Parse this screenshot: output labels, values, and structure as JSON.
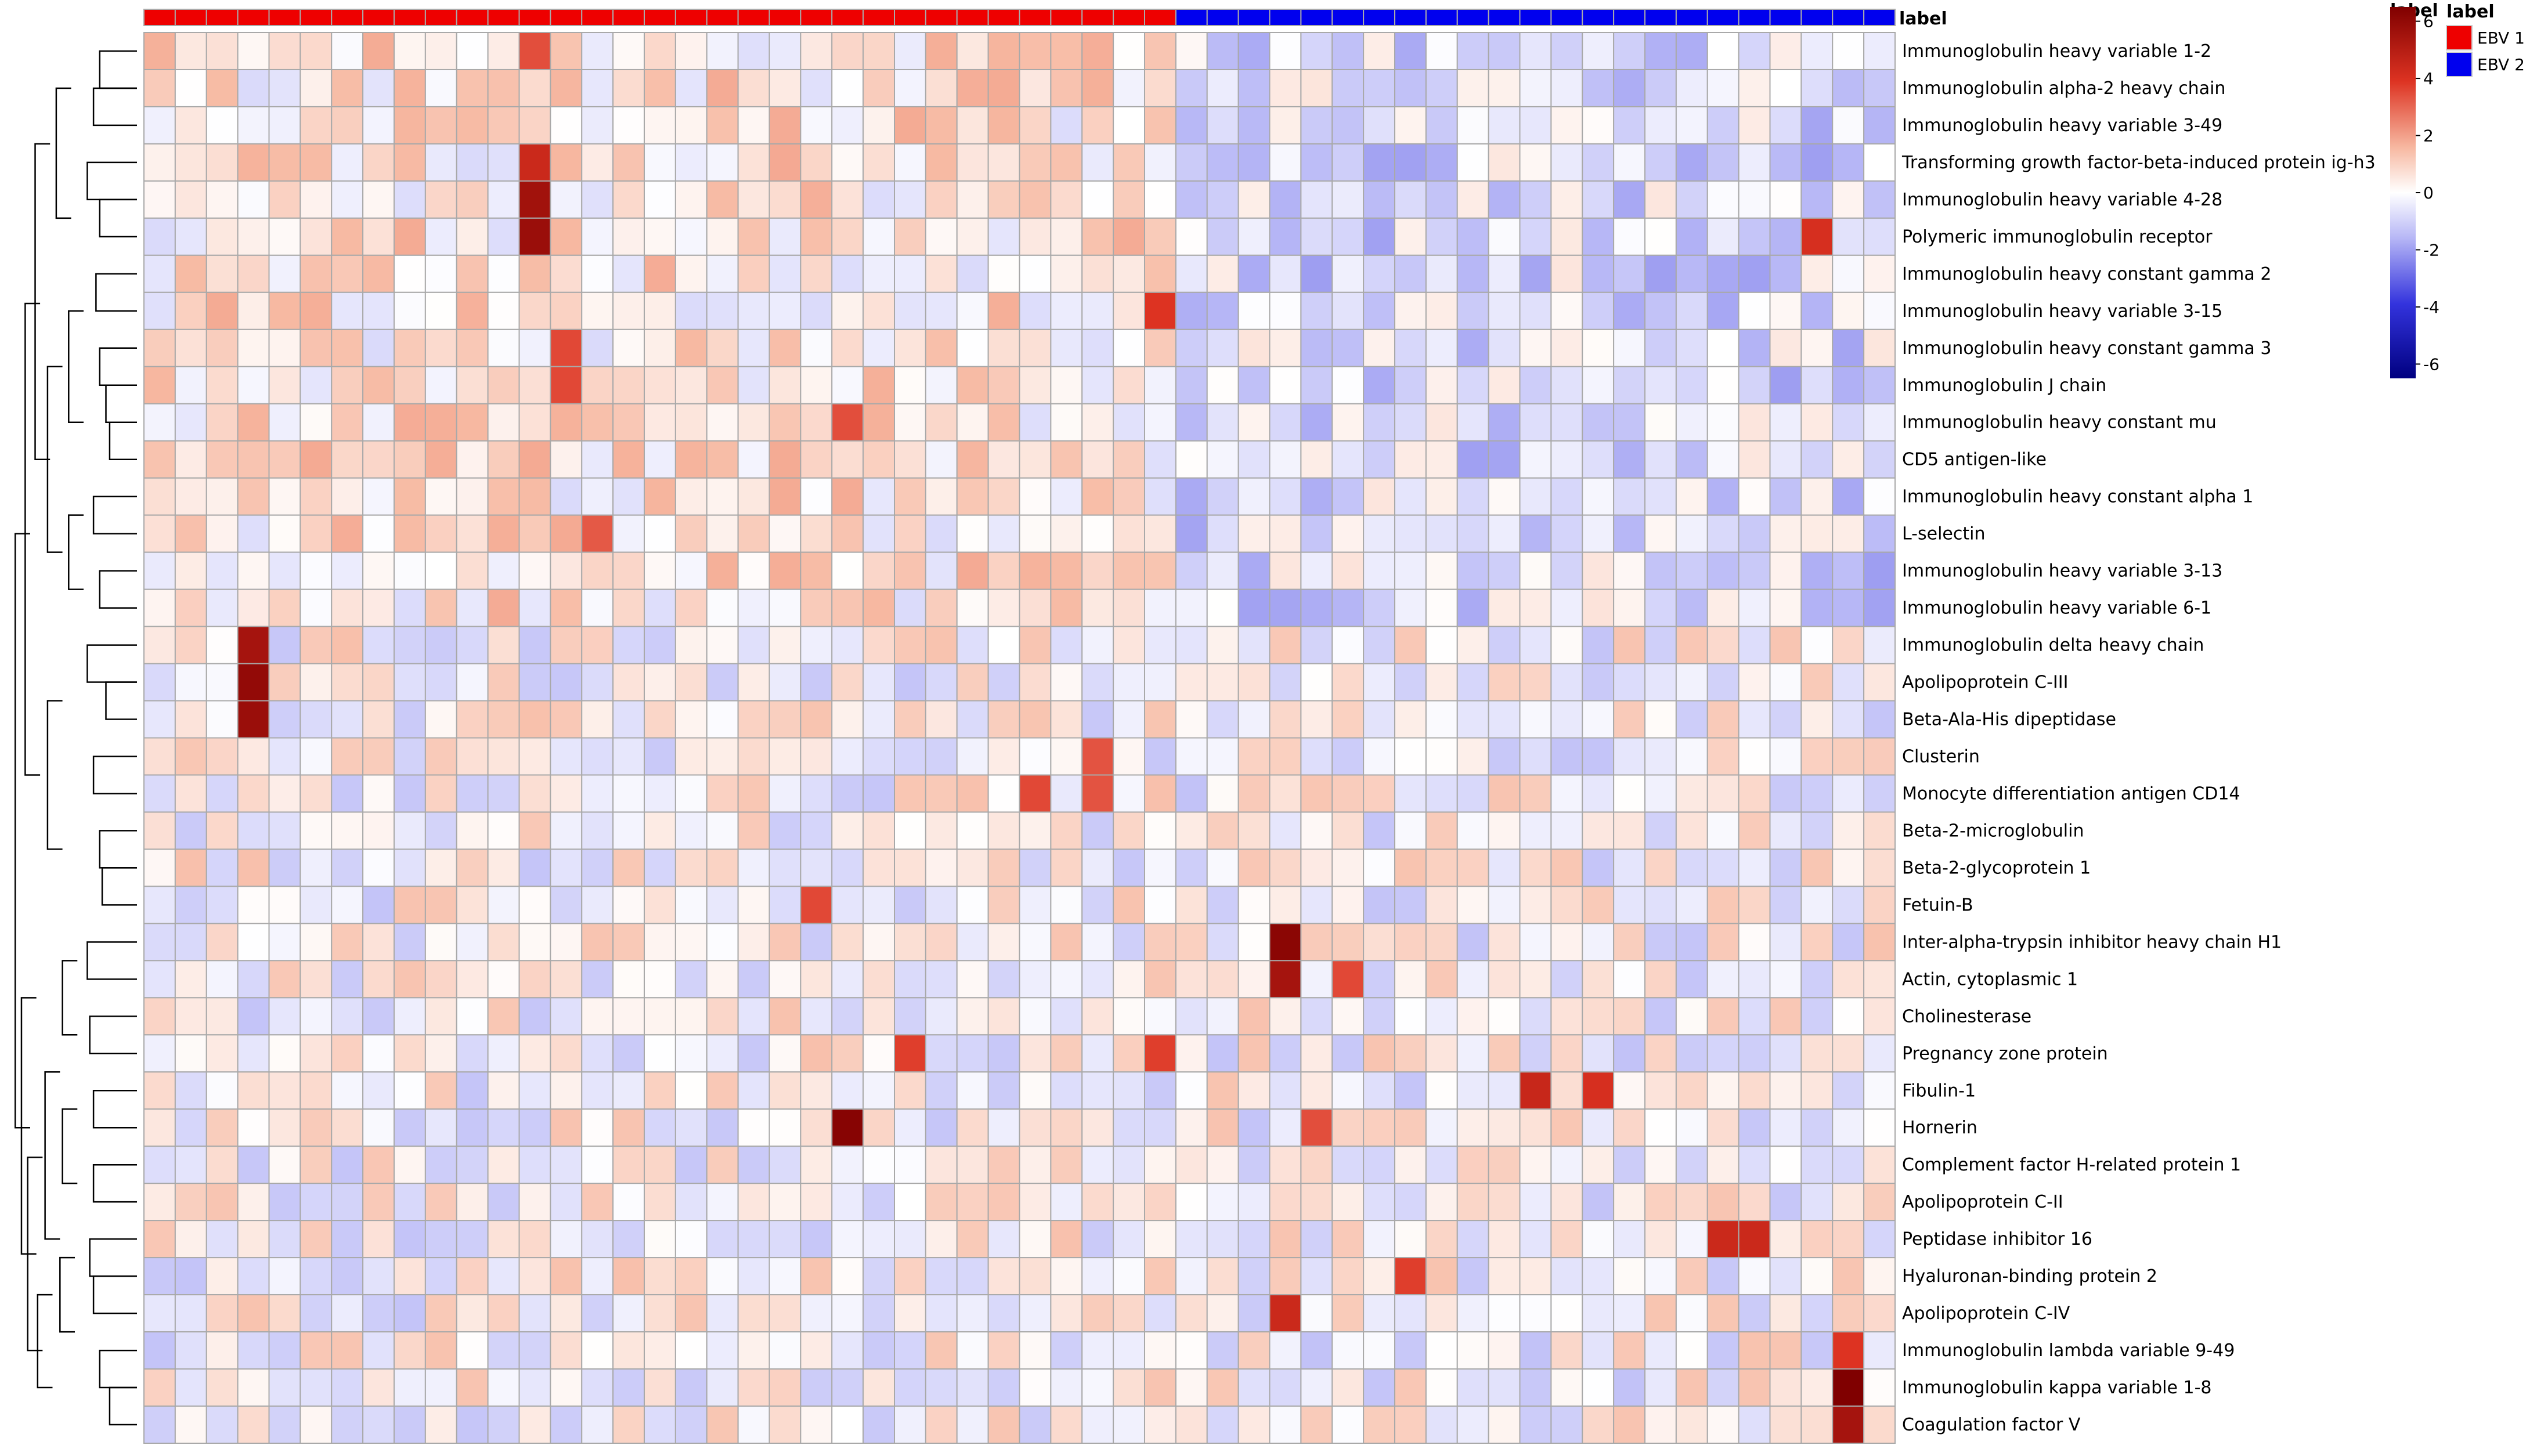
{
  "chart_data": {
    "type": "heatmap",
    "title": "",
    "annotation_label": "label",
    "groups": [
      {
        "name": "EBV 1",
        "color": "#ee0000",
        "count": 33
      },
      {
        "name": "EBV 2",
        "color": "#0000ee",
        "count": 23
      }
    ],
    "color_scale": {
      "min": -6.5,
      "max": 6.5,
      "low": "#000080",
      "mid_low": "#3333ff",
      "mid": "#ffffff",
      "mid_high": "#ee6644",
      "high": "#800000",
      "ticks": [
        6,
        4,
        2,
        0,
        -2,
        -4,
        -6
      ]
    },
    "legend": {
      "colorbar_title": "label",
      "group_title": "label"
    },
    "rows": [
      "Immunoglobulin heavy variable 1-2",
      "Immunoglobulin alpha-2 heavy chain",
      "Immunoglobulin heavy variable 3-49",
      "Transforming growth factor-beta-induced protein ig-h3",
      "Immunoglobulin heavy variable 4-28",
      "Polymeric immunoglobulin receptor",
      "Immunoglobulin heavy constant gamma 2",
      "Immunoglobulin heavy variable 3-15",
      "Immunoglobulin heavy constant gamma 3",
      "Immunoglobulin J chain",
      "Immunoglobulin heavy constant mu",
      "CD5 antigen-like",
      "Immunoglobulin heavy constant alpha 1",
      "L-selectin",
      "Immunoglobulin heavy variable 3-13",
      "Immunoglobulin heavy variable 6-1",
      "Immunoglobulin delta heavy chain",
      "Apolipoprotein C-III",
      "Beta-Ala-His dipeptidase",
      "Clusterin",
      "Monocyte differentiation antigen CD14",
      "Beta-2-microglobulin",
      "Beta-2-glycoprotein 1",
      "Fetuin-B",
      "Inter-alpha-trypsin inhibitor heavy chain H1",
      "Actin, cytoplasmic 1",
      "Cholinesterase",
      "Pregnancy zone protein",
      "Fibulin-1",
      "Hornerin",
      "Complement factor H-related protein 1",
      "Apolipoprotein C-II",
      "Peptidase inhibitor 16",
      "Hyaluronan-binding protein 2",
      "Apolipoprotein C-IV",
      "Immunoglobulin lambda variable 9-49",
      "Immunoglobulin kappa variable 1-8",
      "Coagulation factor V"
    ],
    "hotspots": [
      {
        "row": 0,
        "col": 12,
        "value": 3.5
      },
      {
        "row": 3,
        "col": 12,
        "value": 4.5
      },
      {
        "row": 4,
        "col": 12,
        "value": 5.6
      },
      {
        "row": 5,
        "col": 12,
        "value": 5.8
      },
      {
        "row": 5,
        "col": 53,
        "value": 4.2
      },
      {
        "row": 7,
        "col": 32,
        "value": 4.0
      },
      {
        "row": 8,
        "col": 13,
        "value": 3.6
      },
      {
        "row": 9,
        "col": 13,
        "value": 3.6
      },
      {
        "row": 10,
        "col": 22,
        "value": 3.5
      },
      {
        "row": 13,
        "col": 14,
        "value": 3.3
      },
      {
        "row": 16,
        "col": 3,
        "value": 5.5
      },
      {
        "row": 17,
        "col": 3,
        "value": 6.0
      },
      {
        "row": 18,
        "col": 3,
        "value": 5.8
      },
      {
        "row": 19,
        "col": 30,
        "value": 3.4
      },
      {
        "row": 20,
        "col": 28,
        "value": 3.6
      },
      {
        "row": 20,
        "col": 30,
        "value": 3.4
      },
      {
        "row": 23,
        "col": 21,
        "value": 3.6
      },
      {
        "row": 24,
        "col": 36,
        "value": 6.2
      },
      {
        "row": 25,
        "col": 36,
        "value": 5.5
      },
      {
        "row": 25,
        "col": 38,
        "value": 3.6
      },
      {
        "row": 27,
        "col": 24,
        "value": 3.8
      },
      {
        "row": 27,
        "col": 32,
        "value": 3.8
      },
      {
        "row": 28,
        "col": 44,
        "value": 4.6
      },
      {
        "row": 28,
        "col": 46,
        "value": 4.2
      },
      {
        "row": 29,
        "col": 22,
        "value": 6.3
      },
      {
        "row": 29,
        "col": 37,
        "value": 3.5
      },
      {
        "row": 32,
        "col": 50,
        "value": 4.5
      },
      {
        "row": 32,
        "col": 51,
        "value": 4.5
      },
      {
        "row": 33,
        "col": 40,
        "value": 3.8
      },
      {
        "row": 34,
        "col": 36,
        "value": 4.5
      },
      {
        "row": 35,
        "col": 54,
        "value": 4.0
      },
      {
        "row": 36,
        "col": 54,
        "value": 6.5
      },
      {
        "row": 37,
        "col": 54,
        "value": 5.5
      }
    ],
    "row_dendrogram": {
      "merges": [
        [
          0,
          1,
          0.3
        ],
        [
          1,
          2,
          0.35
        ],
        [
          3,
          4,
          0.4
        ],
        [
          4,
          5,
          0.3
        ],
        [
          6,
          7,
          0.33
        ],
        [
          8,
          9,
          0.3
        ],
        [
          9,
          10,
          0.25
        ],
        [
          10,
          11,
          0.22
        ],
        [
          12,
          13,
          0.35
        ],
        [
          14,
          15,
          0.3
        ],
        [
          16,
          17,
          0.4
        ],
        [
          17,
          18,
          0.25
        ],
        [
          19,
          20,
          0.35
        ],
        [
          21,
          22,
          0.3
        ],
        [
          22,
          23,
          0.28
        ],
        [
          24,
          25,
          0.4
        ],
        [
          26,
          27,
          0.38
        ],
        [
          28,
          29,
          0.35
        ],
        [
          30,
          31,
          0.35
        ],
        [
          32,
          33,
          0.38
        ],
        [
          33,
          34,
          0.35
        ],
        [
          35,
          36,
          0.3
        ],
        [
          36,
          37,
          0.22
        ]
      ]
    }
  }
}
